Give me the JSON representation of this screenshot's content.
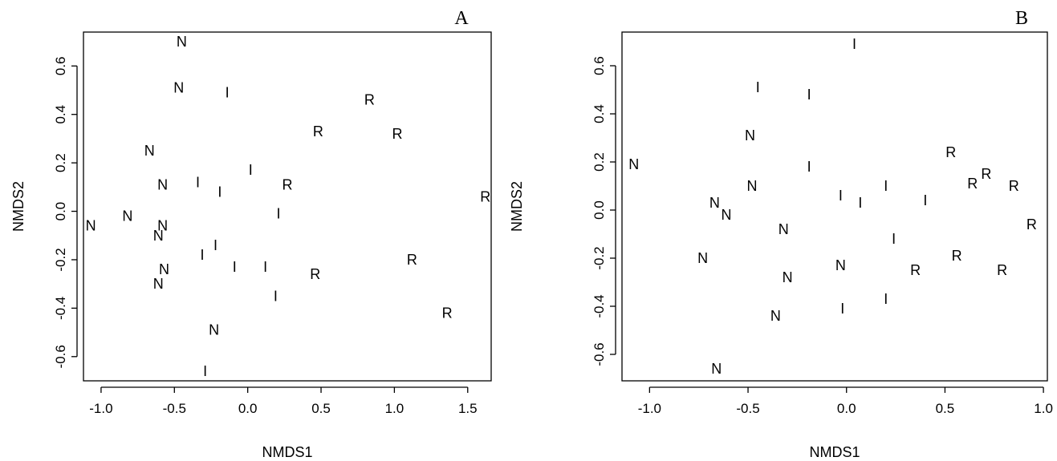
{
  "chart_data": [
    {
      "type": "scatter",
      "panel_label": "A",
      "xlabel": "NMDS1",
      "ylabel": "NMDS2",
      "xlim": [
        -1.12,
        1.66
      ],
      "ylim": [
        -0.7,
        0.74
      ],
      "xticks": [
        -1.0,
        -0.5,
        0.0,
        0.5,
        1.0,
        1.5
      ],
      "xtick_labels": [
        "-1.0",
        "-0.5",
        "0.0",
        "0.5",
        "1.0",
        "1.5"
      ],
      "yticks": [
        -0.6,
        -0.4,
        -0.2,
        0.0,
        0.2,
        0.4,
        0.6
      ],
      "ytick_labels": [
        "-0.6",
        "-0.4",
        "-0.2",
        "0.0",
        "0.2",
        "0.4",
        "0.6"
      ],
      "grid": false,
      "points": [
        {
          "x": -0.45,
          "y": 0.7,
          "label": "N"
        },
        {
          "x": -0.47,
          "y": 0.51,
          "label": "N"
        },
        {
          "x": -0.67,
          "y": 0.25,
          "label": "N"
        },
        {
          "x": -0.58,
          "y": 0.11,
          "label": "N"
        },
        {
          "x": -0.82,
          "y": -0.02,
          "label": "N"
        },
        {
          "x": -0.58,
          "y": -0.06,
          "label": "N"
        },
        {
          "x": -0.61,
          "y": -0.1,
          "label": "N"
        },
        {
          "x": -1.07,
          "y": -0.06,
          "label": "N"
        },
        {
          "x": -0.57,
          "y": -0.24,
          "label": "N"
        },
        {
          "x": -0.61,
          "y": -0.3,
          "label": "N"
        },
        {
          "x": -0.23,
          "y": -0.49,
          "label": "N"
        },
        {
          "x": -0.14,
          "y": 0.49,
          "label": "I"
        },
        {
          "x": -0.34,
          "y": 0.12,
          "label": "I"
        },
        {
          "x": -0.19,
          "y": 0.08,
          "label": "I"
        },
        {
          "x": 0.02,
          "y": 0.17,
          "label": "I"
        },
        {
          "x": 0.21,
          "y": -0.01,
          "label": "I"
        },
        {
          "x": -0.22,
          "y": -0.14,
          "label": "I"
        },
        {
          "x": -0.31,
          "y": -0.18,
          "label": "I"
        },
        {
          "x": -0.09,
          "y": -0.23,
          "label": "I"
        },
        {
          "x": 0.12,
          "y": -0.23,
          "label": "I"
        },
        {
          "x": 0.19,
          "y": -0.35,
          "label": "I"
        },
        {
          "x": -0.29,
          "y": -0.66,
          "label": "I"
        },
        {
          "x": 0.83,
          "y": 0.46,
          "label": "R"
        },
        {
          "x": 0.48,
          "y": 0.33,
          "label": "R"
        },
        {
          "x": 1.02,
          "y": 0.32,
          "label": "R"
        },
        {
          "x": 0.27,
          "y": 0.11,
          "label": "R"
        },
        {
          "x": 1.62,
          "y": 0.06,
          "label": "R"
        },
        {
          "x": 1.12,
          "y": -0.2,
          "label": "R"
        },
        {
          "x": 0.46,
          "y": -0.26,
          "label": "R"
        },
        {
          "x": 1.36,
          "y": -0.42,
          "label": "R"
        }
      ]
    },
    {
      "type": "scatter",
      "panel_label": "B",
      "xlabel": "NMDS1",
      "ylabel": "NMDS2",
      "xlim": [
        -1.14,
        1.02
      ],
      "ylim": [
        -0.71,
        0.74
      ],
      "xticks": [
        -1.0,
        -0.5,
        0.0,
        0.5,
        1.0
      ],
      "xtick_labels": [
        "-1.0",
        "-0.5",
        "0.0",
        "0.5",
        "1.0"
      ],
      "yticks": [
        -0.6,
        -0.4,
        -0.2,
        0.0,
        0.2,
        0.4,
        0.6
      ],
      "ytick_labels": [
        "-0.6",
        "-0.4",
        "-0.2",
        "0.0",
        "0.2",
        "0.4",
        "0.6"
      ],
      "grid": false,
      "points": [
        {
          "x": 0.04,
          "y": 0.69,
          "label": "I"
        },
        {
          "x": -0.45,
          "y": 0.51,
          "label": "I"
        },
        {
          "x": -0.19,
          "y": 0.48,
          "label": "I"
        },
        {
          "x": -0.19,
          "y": 0.18,
          "label": "I"
        },
        {
          "x": 0.2,
          "y": 0.1,
          "label": "I"
        },
        {
          "x": -0.03,
          "y": 0.06,
          "label": "I"
        },
        {
          "x": 0.07,
          "y": 0.03,
          "label": "I"
        },
        {
          "x": 0.4,
          "y": 0.04,
          "label": "I"
        },
        {
          "x": 0.24,
          "y": -0.12,
          "label": "I"
        },
        {
          "x": 0.2,
          "y": -0.37,
          "label": "I"
        },
        {
          "x": -0.02,
          "y": -0.41,
          "label": "I"
        },
        {
          "x": -0.49,
          "y": 0.31,
          "label": "N"
        },
        {
          "x": -1.08,
          "y": 0.19,
          "label": "N"
        },
        {
          "x": -0.48,
          "y": 0.1,
          "label": "N"
        },
        {
          "x": -0.67,
          "y": 0.03,
          "label": "N"
        },
        {
          "x": -0.61,
          "y": -0.02,
          "label": "N"
        },
        {
          "x": -0.32,
          "y": -0.08,
          "label": "N"
        },
        {
          "x": -0.73,
          "y": -0.2,
          "label": "N"
        },
        {
          "x": -0.03,
          "y": -0.23,
          "label": "N"
        },
        {
          "x": -0.3,
          "y": -0.28,
          "label": "N"
        },
        {
          "x": -0.36,
          "y": -0.44,
          "label": "N"
        },
        {
          "x": -0.66,
          "y": -0.66,
          "label": "N"
        },
        {
          "x": 0.53,
          "y": 0.24,
          "label": "R"
        },
        {
          "x": 0.71,
          "y": 0.15,
          "label": "R"
        },
        {
          "x": 0.64,
          "y": 0.11,
          "label": "R"
        },
        {
          "x": 0.85,
          "y": 0.1,
          "label": "R"
        },
        {
          "x": 0.94,
          "y": -0.06,
          "label": "R"
        },
        {
          "x": 0.56,
          "y": -0.19,
          "label": "R"
        },
        {
          "x": 0.35,
          "y": -0.25,
          "label": "R"
        },
        {
          "x": 0.79,
          "y": -0.25,
          "label": "R"
        }
      ]
    }
  ]
}
